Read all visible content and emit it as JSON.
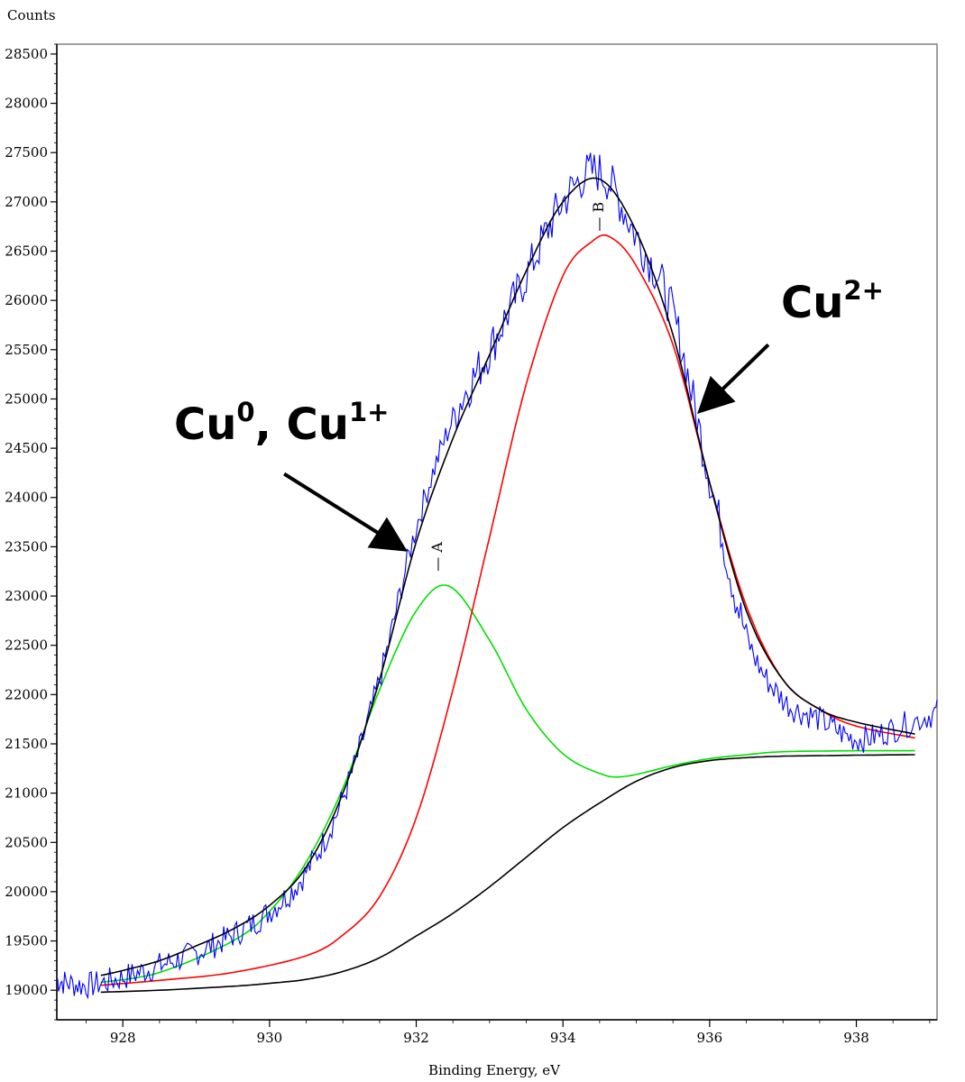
{
  "chart_data": {
    "type": "line",
    "title": "",
    "xlabel": "Binding Energy, eV",
    "ylabel": "Counts",
    "xlim": [
      927.1,
      939.1
    ],
    "ylim": [
      18700,
      28600
    ],
    "x_ticks": [
      928,
      930,
      932,
      934,
      936,
      938
    ],
    "y_ticks": [
      19000,
      19500,
      20000,
      20500,
      21000,
      21500,
      22000,
      22500,
      23000,
      23500,
      24000,
      24500,
      25000,
      25500,
      26000,
      26500,
      27000,
      27500,
      28000,
      28500
    ],
    "grid": false,
    "legend": "none",
    "series": [
      {
        "key": "raw",
        "color": "#0000ff",
        "x": [
          927.1,
          927.5,
          928.0,
          928.5,
          929.0,
          929.5,
          930.0,
          930.5,
          931.0,
          931.5,
          932.0,
          932.5,
          933.0,
          933.5,
          934.0,
          934.5,
          935.0,
          935.5,
          936.0,
          936.5,
          937.0,
          937.5,
          938.0,
          938.5,
          939.1
        ],
        "y": [
          19100,
          19050,
          19130,
          19250,
          19380,
          19560,
          19800,
          20200,
          20950,
          22150,
          23700,
          24800,
          25500,
          26250,
          27000,
          27300,
          26650,
          25850,
          24200,
          22600,
          21950,
          21750,
          21550,
          21650,
          21820
        ]
      },
      {
        "key": "envelope",
        "color": "#000000",
        "x": [
          927.7,
          928.0,
          928.5,
          929.0,
          929.5,
          930.0,
          930.5,
          931.0,
          931.5,
          932.0,
          932.5,
          933.0,
          933.5,
          934.0,
          934.5,
          935.0,
          935.5,
          936.0,
          936.5,
          937.0,
          937.5,
          938.0,
          938.8
        ],
        "y": [
          19150,
          19200,
          19300,
          19450,
          19620,
          19860,
          20250,
          21000,
          22150,
          23550,
          24600,
          25450,
          26300,
          27000,
          27230,
          26700,
          25650,
          24150,
          22850,
          22150,
          21850,
          21720,
          21600
        ]
      },
      {
        "key": "fit-B",
        "color": "#ff0000",
        "x": [
          927.7,
          928.5,
          929.5,
          930.5,
          931.0,
          931.5,
          932.0,
          932.5,
          933.0,
          933.5,
          934.0,
          934.4,
          934.65,
          935.0,
          935.5,
          936.0,
          936.5,
          937.0,
          937.5,
          938.0,
          938.8
        ],
        "y": [
          19050,
          19100,
          19180,
          19350,
          19560,
          19950,
          20750,
          22050,
          23600,
          25150,
          26250,
          26600,
          26640,
          26350,
          25550,
          24150,
          22900,
          22150,
          21850,
          21680,
          21560
        ]
      },
      {
        "key": "fit-A",
        "color": "#00e000",
        "x": [
          927.7,
          928.5,
          929.5,
          930.0,
          930.5,
          931.0,
          931.5,
          932.0,
          932.45,
          933.0,
          933.5,
          934.0,
          934.5,
          934.85,
          935.5,
          936.0,
          936.5,
          937.0,
          938.0,
          938.8
        ],
        "y": [
          19080,
          19180,
          19500,
          19800,
          20300,
          21050,
          22050,
          22850,
          23100,
          22550,
          21850,
          21400,
          21200,
          21170,
          21280,
          21350,
          21390,
          21420,
          21430,
          21430
        ]
      },
      {
        "key": "background",
        "color": "#000000",
        "x": [
          927.7,
          928.5,
          929.5,
          930.0,
          930.5,
          931.0,
          931.5,
          932.0,
          932.5,
          933.0,
          933.5,
          934.0,
          934.5,
          935.0,
          935.5,
          936.0,
          936.5,
          937.0,
          937.5,
          938.0,
          938.8
        ],
        "y": [
          18980,
          19000,
          19040,
          19070,
          19110,
          19190,
          19330,
          19550,
          19780,
          20050,
          20350,
          20650,
          20900,
          21120,
          21260,
          21330,
          21360,
          21375,
          21380,
          21385,
          21390
        ]
      }
    ],
    "peak_labels": [
      {
        "label": "A",
        "x": 932.35,
        "y": 23250
      },
      {
        "label": "B",
        "x": 934.55,
        "y": 26700
      }
    ],
    "annotations": [
      {
        "text_main": "Cu",
        "sup1": "0",
        "text_mid": ", Cu",
        "sup2": "1+",
        "arrow_from": [
          930.2,
          24240
        ],
        "arrow_to": [
          931.8,
          23490
        ]
      },
      {
        "text_main": "Cu",
        "sup1": "2+",
        "text_mid": "",
        "sup2": "",
        "arrow_from": [
          936.8,
          25550
        ],
        "arrow_to": [
          935.9,
          24900
        ]
      }
    ]
  }
}
